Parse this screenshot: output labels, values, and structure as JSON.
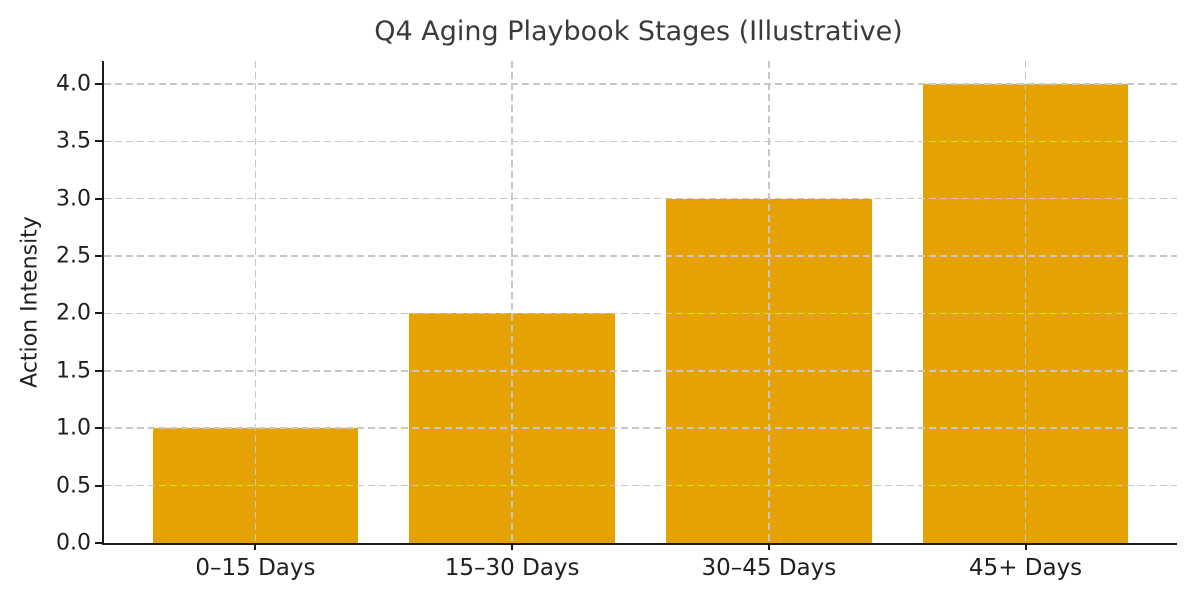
{
  "chart_data": {
    "type": "bar",
    "title": "Q4 Aging Playbook Stages (Illustrative)",
    "xlabel": "",
    "ylabel": "Action Intensity",
    "categories": [
      "0–15 Days",
      "15–30 Days",
      "30–45 Days",
      "45+ Days"
    ],
    "values": [
      1,
      2,
      3,
      4
    ],
    "ylim": [
      0,
      4.2
    ],
    "ytick_values": [
      0.0,
      0.5,
      1.0,
      1.5,
      2.0,
      2.5,
      3.0,
      3.5,
      4.0
    ],
    "ytick_labels": [
      "0.0",
      "0.5",
      "1.0",
      "1.5",
      "2.0",
      "2.5",
      "3.0",
      "3.5",
      "4.0"
    ],
    "bar_width_fraction": 0.8,
    "x_margin_units": 0.59,
    "bar_color": "#E6A202",
    "grid_color": "#c7c7c7",
    "axis_color": "#1a1a1a",
    "text_color": "#1f1f1f",
    "title_color": "#3a3a3a",
    "grid": "dashed, horizontal and vertical, drawn above bars",
    "legend": "none",
    "spines": "left and bottom only"
  }
}
